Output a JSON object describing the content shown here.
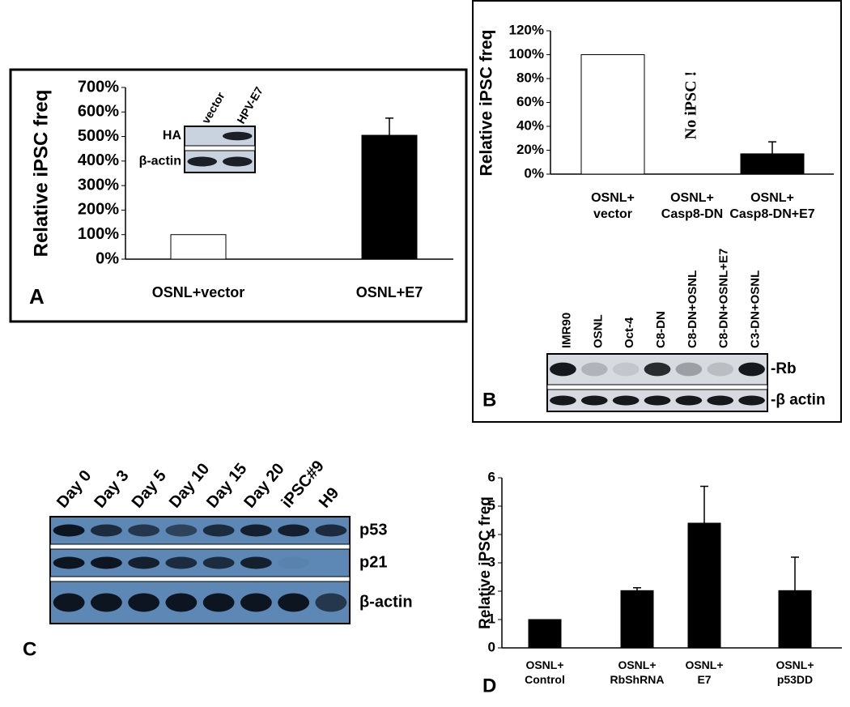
{
  "chart_data": [
    {
      "type": "bar",
      "panel": "A",
      "y_label": "Relative iPSC freq",
      "categories": [
        "OSNL+vector",
        "OSNL+E7"
      ],
      "values": [
        100,
        505
      ],
      "errors": [
        null,
        70
      ],
      "colors": [
        "#ffffff",
        "#000000"
      ],
      "ylim": [
        0,
        700
      ],
      "yticks": [
        {
          "value": 0,
          "label": "0%"
        },
        {
          "value": 100,
          "label": "100%"
        },
        {
          "value": 200,
          "label": "200%"
        },
        {
          "value": 300,
          "label": "300%"
        },
        {
          "value": 400,
          "label": "400%"
        },
        {
          "value": 500,
          "label": "500%"
        },
        {
          "value": 600,
          "label": "600%"
        },
        {
          "value": 700,
          "label": "700%"
        }
      ],
      "inset_blot": {
        "lanes": [
          "vector",
          "HPV-E7"
        ],
        "rows": [
          "HA",
          "β-actin"
        ]
      }
    },
    {
      "type": "bar",
      "panel": "B",
      "y_label": "Relative iPSC freq",
      "categories": [
        [
          "OSNL+",
          "vector"
        ],
        [
          "OSNL+",
          "Casp8-DN"
        ],
        [
          "OSNL+",
          "Casp8-DN+E7"
        ]
      ],
      "values": [
        100,
        0,
        17
      ],
      "errors": [
        null,
        null,
        10
      ],
      "colors": [
        "#ffffff",
        "#ffffff",
        "#000000"
      ],
      "annotation": "No iPSC !",
      "ylim": [
        0,
        120
      ],
      "yticks": [
        {
          "value": 0,
          "label": "0%"
        },
        {
          "value": 20,
          "label": "20%"
        },
        {
          "value": 40,
          "label": "40%"
        },
        {
          "value": 60,
          "label": "60%"
        },
        {
          "value": 80,
          "label": "80%"
        },
        {
          "value": 100,
          "label": "100%"
        },
        {
          "value": 120,
          "label": "120%"
        }
      ]
    },
    {
      "type": "bar",
      "panel": "D",
      "y_label": "Relative iPSC freq",
      "categories": [
        [
          "OSNL+",
          "Control"
        ],
        [
          "OSNL+",
          "RbShRNA"
        ],
        [
          "OSNL+",
          "E7"
        ],
        [
          "OSNL+",
          "p53DD"
        ]
      ],
      "values": [
        1,
        2.02,
        4.4,
        2.02
      ],
      "errors": [
        null,
        0.1,
        1.3,
        1.18
      ],
      "colors": [
        "#000000",
        "#000000",
        "#000000",
        "#000000"
      ],
      "ylim": [
        0,
        6
      ],
      "yticks": [
        0,
        1,
        2,
        3,
        4,
        5,
        6
      ]
    }
  ],
  "blots": [
    {
      "panel": "B",
      "lanes": [
        "IMR90",
        "OSNL",
        "Oct-4",
        "C8-DN",
        "C8-DN+OSNL",
        "C8-DN+OSNL+E7",
        "C3-DN+OSNL"
      ],
      "rows": [
        "-Rb",
        "-β actin"
      ]
    },
    {
      "panel": "C",
      "lanes": [
        "Day 0",
        "Day 3",
        "Day 5",
        "Day 10",
        "Day 15",
        "Day 20",
        "iPSC#9",
        "H9"
      ],
      "rows": [
        "p53",
        "p21",
        "β-actin"
      ]
    }
  ]
}
